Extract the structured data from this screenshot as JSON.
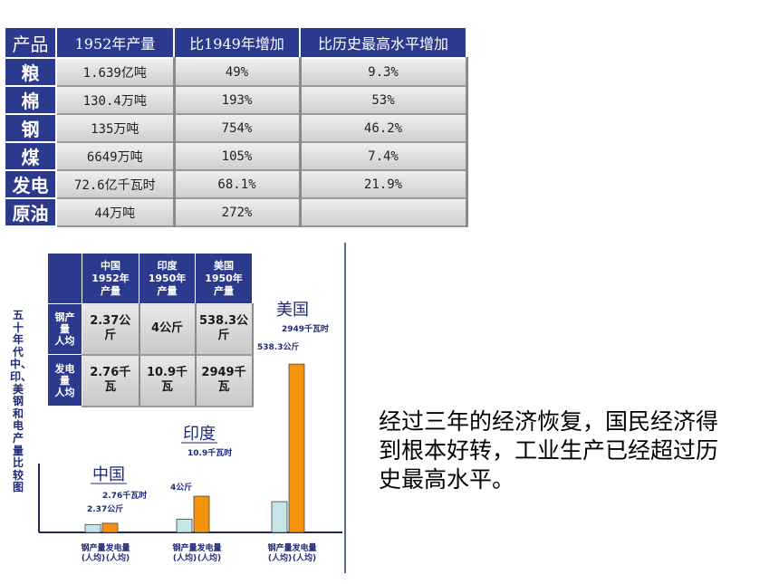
{
  "top_table": {
    "headers": [
      "产品",
      "1952年产量",
      "比1949年增加",
      "比历史最高水平增加"
    ],
    "rows": [
      {
        "product": "粮",
        "output_1952": "1.639亿吨",
        "vs_1949": "49%",
        "vs_record": "9.3%"
      },
      {
        "product": "棉",
        "output_1952": "130.4万吨",
        "vs_1949": "193%",
        "vs_record": "53%"
      },
      {
        "product": "钢",
        "output_1952": "135万吨",
        "vs_1949": "754%",
        "vs_record": "46.2%"
      },
      {
        "product": "煤",
        "output_1952": "6649万吨",
        "vs_1949": "105%",
        "vs_record": "7.4%"
      },
      {
        "product": "发电",
        "output_1952": "72.6亿千瓦时",
        "vs_1949": "68.1%",
        "vs_record": "21.9%"
      },
      {
        "product": "原油",
        "output_1952": "44万吨",
        "vs_1949": "272%",
        "vs_record": ""
      }
    ]
  },
  "comparison": {
    "vertical_title": "五十年代中、印、美钢和电产量比较图",
    "col_headers": [
      "中国\n1952年\n产量",
      "印度\n1950年\n产量",
      "美国\n1950年\n产量"
    ],
    "rows": [
      {
        "label": "钢产\n量\n人均",
        "values": [
          "2.37公\n斤",
          "4公斤",
          "538.3公\n斤"
        ]
      },
      {
        "label": "发电\n量\n人均",
        "values": [
          "2.76千\n瓦",
          "10.9千\n瓦",
          "2949千\n瓦"
        ]
      }
    ]
  },
  "chart_data": {
    "type": "bar",
    "categories": [
      "中国",
      "印度",
      "美国"
    ],
    "series": [
      {
        "values": [
          2.37,
          4,
          538.3
        ],
        "labels": [
          "2.37公斤",
          "4公斤",
          "538.3公斤"
        ],
        "color": "#c5e6e9"
      },
      {
        "values": [
          2.76,
          10.9,
          2949
        ],
        "labels": [
          "2.76千瓦时",
          "10.9千瓦时",
          "2949千瓦时"
        ],
        "color": "#f5930f"
      }
    ],
    "bar_labels": [
      "钢产量",
      "发电量"
    ],
    "bar_sublabels": [
      "(人均)",
      "(人均)"
    ]
  },
  "summary_text": "经过三年的经济恢复，国民经济得到根本好转，工业生产已经超过历史最高水平。"
}
